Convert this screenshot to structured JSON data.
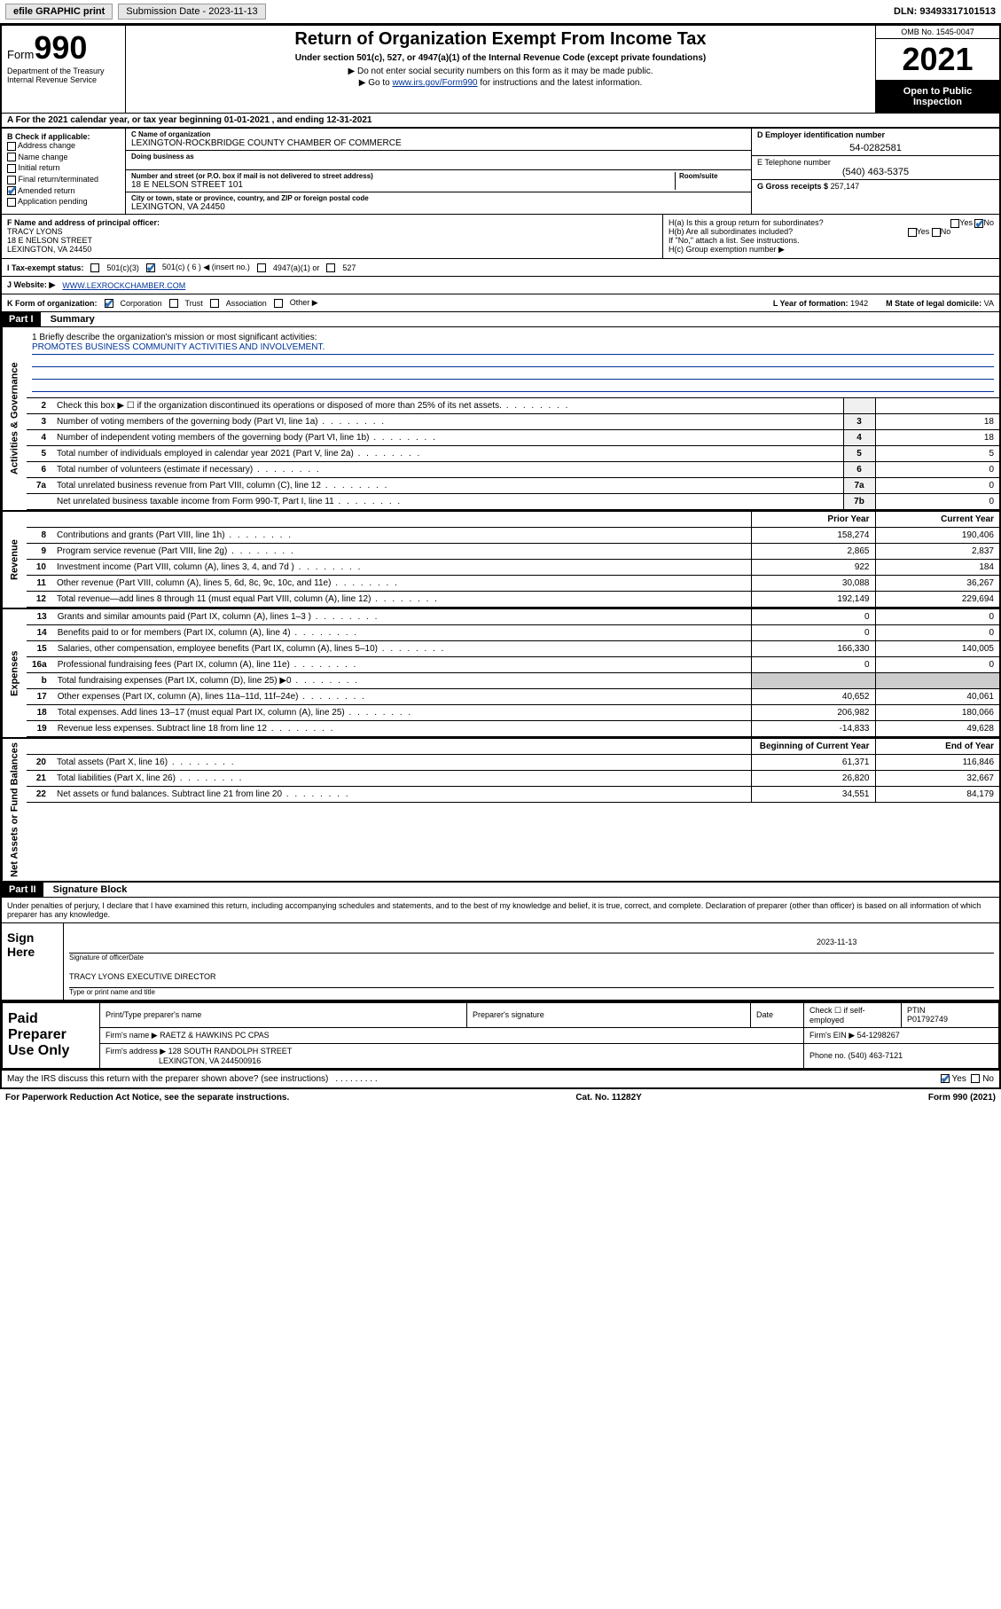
{
  "topbar": {
    "efile": "efile GRAPHIC print",
    "submission_label": "Submission Date - 2023-11-13",
    "dln": "DLN: 93493317101513"
  },
  "header": {
    "form_prefix": "Form",
    "form_number": "990",
    "title": "Return of Organization Exempt From Income Tax",
    "subtitle": "Under section 501(c), 527, or 4947(a)(1) of the Internal Revenue Code (except private foundations)",
    "note1": "▶ Do not enter social security numbers on this form as it may be made public.",
    "note2_pre": "▶ Go to ",
    "note2_link": "www.irs.gov/Form990",
    "note2_post": " for instructions and the latest information.",
    "dept": "Department of the Treasury",
    "irs": "Internal Revenue Service",
    "omb": "OMB No. 1545-0047",
    "year": "2021",
    "open": "Open to Public Inspection"
  },
  "rowA": "A For the 2021 calendar year, or tax year beginning 01-01-2021   , and ending 12-31-2021",
  "colB": {
    "label": "B Check if applicable:",
    "items": [
      "Address change",
      "Name change",
      "Initial return",
      "Final return/terminated",
      "Amended return",
      "Application pending"
    ],
    "checked_idx": 4
  },
  "colC": {
    "name_label": "C Name of organization",
    "name": "LEXINGTON-ROCKBRIDGE COUNTY CHAMBER OF COMMERCE",
    "dba_label": "Doing business as",
    "dba": "",
    "street_label": "Number and street (or P.O. box if mail is not delivered to street address)",
    "room_label": "Room/suite",
    "street": "18 E NELSON STREET 101",
    "city_label": "City or town, state or province, country, and ZIP or foreign postal code",
    "city": "LEXINGTON, VA  24450"
  },
  "colD": {
    "ein_label": "D Employer identification number",
    "ein": "54-0282581",
    "phone_label": "E Telephone number",
    "phone": "(540) 463-5375",
    "gross_label": "G Gross receipts $",
    "gross": "257,147"
  },
  "rowF": {
    "label": "F Name and address of principal officer:",
    "name": "TRACY LYONS",
    "street": "18 E NELSON STREET",
    "city": "LEXINGTON, VA  24450"
  },
  "rowH": {
    "ha": "H(a) Is this a group return for subordinates?",
    "hb": "H(b) Are all subordinates included?",
    "hb_note": "If \"No,\" attach a list. See instructions.",
    "hc": "H(c) Group exemption number ▶",
    "yes": "Yes",
    "no": "No"
  },
  "rowI": {
    "label": "I  Tax-exempt status:",
    "c3": "501(c)(3)",
    "c": "501(c) ( 6 ) ◀ (insert no.)",
    "a1": "4947(a)(1) or",
    "s527": "527"
  },
  "rowJ": {
    "label": "J  Website: ▶",
    "value": "WWW.LEXROCKCHAMBER.COM"
  },
  "rowK": {
    "label": "K Form of organization:",
    "corp": "Corporation",
    "trust": "Trust",
    "assoc": "Association",
    "other": "Other ▶",
    "year_label": "L Year of formation:",
    "year": "1942",
    "state_label": "M State of legal domicile:",
    "state": "VA"
  },
  "part1": {
    "label": "Part I",
    "title": "Summary"
  },
  "mission": {
    "q": "1  Briefly describe the organization's mission or most significant activities:",
    "text": "PROMOTES BUSINESS COMMUNITY ACTIVITIES AND INVOLVEMENT."
  },
  "gov_lines": [
    {
      "n": "2",
      "d": "Check this box ▶ ☐ if the organization discontinued its operations or disposed of more than 25% of its net assets.",
      "l": "",
      "v": ""
    },
    {
      "n": "3",
      "d": "Number of voting members of the governing body (Part VI, line 1a)",
      "l": "3",
      "v": "18"
    },
    {
      "n": "4",
      "d": "Number of independent voting members of the governing body (Part VI, line 1b)",
      "l": "4",
      "v": "18"
    },
    {
      "n": "5",
      "d": "Total number of individuals employed in calendar year 2021 (Part V, line 2a)",
      "l": "5",
      "v": "5"
    },
    {
      "n": "6",
      "d": "Total number of volunteers (estimate if necessary)",
      "l": "6",
      "v": "0"
    },
    {
      "n": "7a",
      "d": "Total unrelated business revenue from Part VIII, column (C), line 12",
      "l": "7a",
      "v": "0"
    },
    {
      "n": "",
      "d": "Net unrelated business taxable income from Form 990-T, Part I, line 11",
      "l": "7b",
      "v": "0"
    }
  ],
  "col_headers": {
    "prior": "Prior Year",
    "current": "Current Year"
  },
  "rev_lines": [
    {
      "n": "8",
      "d": "Contributions and grants (Part VIII, line 1h)",
      "p": "158,274",
      "c": "190,406"
    },
    {
      "n": "9",
      "d": "Program service revenue (Part VIII, line 2g)",
      "p": "2,865",
      "c": "2,837"
    },
    {
      "n": "10",
      "d": "Investment income (Part VIII, column (A), lines 3, 4, and 7d )",
      "p": "922",
      "c": "184"
    },
    {
      "n": "11",
      "d": "Other revenue (Part VIII, column (A), lines 5, 6d, 8c, 9c, 10c, and 11e)",
      "p": "30,088",
      "c": "36,267"
    },
    {
      "n": "12",
      "d": "Total revenue—add lines 8 through 11 (must equal Part VIII, column (A), line 12)",
      "p": "192,149",
      "c": "229,694"
    }
  ],
  "exp_lines": [
    {
      "n": "13",
      "d": "Grants and similar amounts paid (Part IX, column (A), lines 1–3 )",
      "p": "0",
      "c": "0"
    },
    {
      "n": "14",
      "d": "Benefits paid to or for members (Part IX, column (A), line 4)",
      "p": "0",
      "c": "0"
    },
    {
      "n": "15",
      "d": "Salaries, other compensation, employee benefits (Part IX, column (A), lines 5–10)",
      "p": "166,330",
      "c": "140,005"
    },
    {
      "n": "16a",
      "d": "Professional fundraising fees (Part IX, column (A), line 11e)",
      "p": "0",
      "c": "0"
    },
    {
      "n": "b",
      "d": "Total fundraising expenses (Part IX, column (D), line 25) ▶0",
      "p": "",
      "c": "",
      "shaded": true
    },
    {
      "n": "17",
      "d": "Other expenses (Part IX, column (A), lines 11a–11d, 11f–24e)",
      "p": "40,652",
      "c": "40,061"
    },
    {
      "n": "18",
      "d": "Total expenses. Add lines 13–17 (must equal Part IX, column (A), line 25)",
      "p": "206,982",
      "c": "180,066"
    },
    {
      "n": "19",
      "d": "Revenue less expenses. Subtract line 18 from line 12",
      "p": "-14,833",
      "c": "49,628"
    }
  ],
  "bal_headers": {
    "begin": "Beginning of Current Year",
    "end": "End of Year"
  },
  "bal_lines": [
    {
      "n": "20",
      "d": "Total assets (Part X, line 16)",
      "p": "61,371",
      "c": "116,846"
    },
    {
      "n": "21",
      "d": "Total liabilities (Part X, line 26)",
      "p": "26,820",
      "c": "32,667"
    },
    {
      "n": "22",
      "d": "Net assets or fund balances. Subtract line 21 from line 20",
      "p": "34,551",
      "c": "84,179"
    }
  ],
  "sidetabs": {
    "gov": "Activities & Governance",
    "rev": "Revenue",
    "exp": "Expenses",
    "bal": "Net Assets or Fund Balances"
  },
  "part2": {
    "label": "Part II",
    "title": "Signature Block"
  },
  "sig": {
    "penalties": "Under penalties of perjury, I declare that I have examined this return, including accompanying schedules and statements, and to the best of my knowledge and belief, it is true, correct, and complete. Declaration of preparer (other than officer) is based on all information of which preparer has any knowledge.",
    "signhere": "Sign Here",
    "sig_label": "Signature of officer",
    "date_label": "Date",
    "date": "2023-11-13",
    "name": "TRACY LYONS  EXECUTIVE DIRECTOR",
    "name_label": "Type or print name and title"
  },
  "preparer": {
    "label": "Paid Preparer Use Only",
    "h_name": "Print/Type preparer's name",
    "h_sig": "Preparer's signature",
    "h_date": "Date",
    "h_check": "Check ☐ if self-employed",
    "h_ptin": "PTIN",
    "ptin": "P01792749",
    "firm_label": "Firm's name   ▶",
    "firm": "RAETZ & HAWKINS PC CPAS",
    "ein_label": "Firm's EIN ▶",
    "ein": "54-1298267",
    "addr_label": "Firm's address ▶",
    "addr1": "128 SOUTH RANDOLPH STREET",
    "addr2": "LEXINGTON, VA  244500916",
    "phone_label": "Phone no.",
    "phone": "(540) 463-7121",
    "discuss": "May the IRS discuss this return with the preparer shown above? (see instructions)"
  },
  "footer": {
    "left": "For Paperwork Reduction Act Notice, see the separate instructions.",
    "mid": "Cat. No. 11282Y",
    "right": "Form 990 (2021)"
  }
}
